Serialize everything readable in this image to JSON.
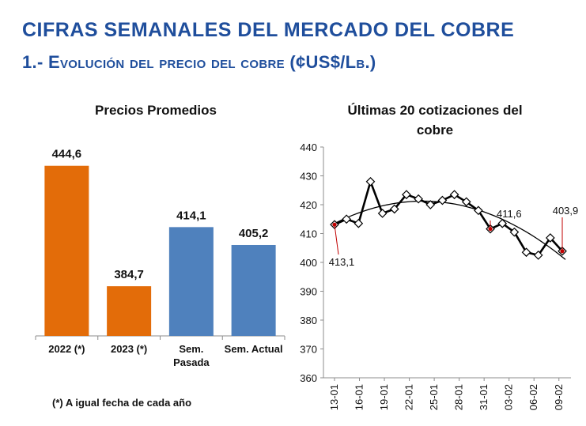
{
  "page": {
    "title": "CIFRAS SEMANALES DEL MERCADO DEL COBRE",
    "subtitle": "1.- Evolución del precio del cobre (¢US$/Lb.)",
    "footnote": "(*) A igual fecha de cada año"
  },
  "chart_data": [
    {
      "type": "bar",
      "title": "Precios Promedios",
      "categories": [
        "2022 (*)",
        "2023 (*)",
        "Sem. Pasada",
        "Sem. Actual"
      ],
      "category_lines": [
        [
          "2022 (*)"
        ],
        [
          "2023 (*)"
        ],
        [
          "Sem.",
          "Pasada"
        ],
        [
          "Sem. Actual"
        ]
      ],
      "values": [
        444.6,
        384.7,
        414.1,
        405.2
      ],
      "value_labels": [
        "444,6",
        "384,7",
        "414,1",
        "405,2"
      ],
      "colors": [
        "#e36c09",
        "#e36c09",
        "#4f81bd",
        "#4f81bd"
      ],
      "ylim": [
        360,
        450
      ],
      "grid": false
    },
    {
      "type": "line",
      "title": "Últimas 20 cotizaciones del cobre",
      "title_lines": [
        "Últimas 20 cotizaciones del",
        "cobre"
      ],
      "x_tick_labels": [
        "13-01",
        "16-01",
        "19-01",
        "22-01",
        "25-01",
        "28-01",
        "31-01",
        "03-02",
        "06-02",
        "09-02"
      ],
      "series": [
        {
          "values": [
            413.1,
            415.0,
            413.5,
            428.0,
            417.0,
            418.5,
            423.5,
            422.0,
            420.0,
            421.5,
            423.5,
            421.0,
            418.0,
            411.6,
            413.5,
            410.5,
            403.5,
            402.5,
            408.5,
            403.9
          ],
          "color": "#000000",
          "marker": "diamond"
        },
        {
          "type": "trendline",
          "values_start_mid_end": [
            413.5,
            420.5,
            401.0
          ],
          "color": "#000000"
        }
      ],
      "annotations": [
        {
          "label": "413,1",
          "point_index": 0
        },
        {
          "label": "411,6",
          "point_index": 13
        },
        {
          "label": "403,9",
          "point_index": 19
        }
      ],
      "highlight_color": "#c00000",
      "ylim": [
        360,
        440
      ],
      "yticks": [
        360,
        370,
        380,
        390,
        400,
        410,
        420,
        430,
        440
      ],
      "grid": false
    }
  ]
}
